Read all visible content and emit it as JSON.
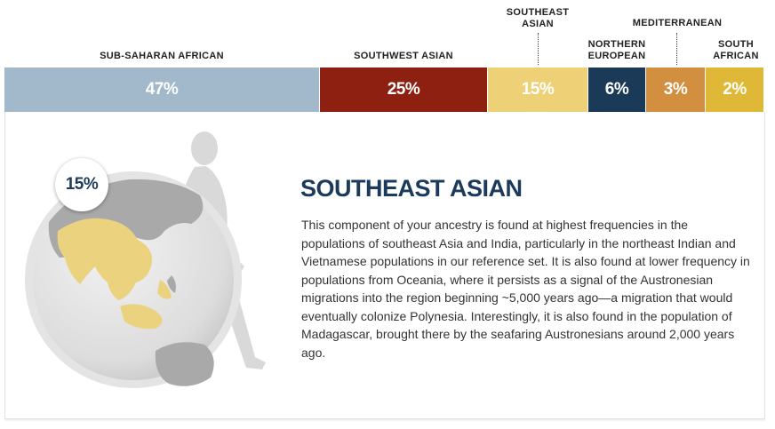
{
  "chart_data": {
    "type": "bar",
    "categories": [
      "SUB-SAHARAN AFRICAN",
      "SOUTHWEST ASIAN",
      "SOUTHEAST ASIAN",
      "NORTHERN EUROPEAN",
      "MEDITERRANEAN",
      "SOUTH AFRICAN"
    ],
    "values": [
      47,
      25,
      15,
      6,
      3,
      2
    ],
    "value_labels": [
      "47%",
      "25%",
      "15%",
      "6%",
      "3%",
      "2%"
    ],
    "colors": [
      "#a2b8cb",
      "#8e2012",
      "#eed177",
      "#1b3a58",
      "#d38f40",
      "#dfb837"
    ],
    "stacked": true,
    "selected": "SOUTHEAST ASIAN"
  },
  "labels": {
    "sub_saharan": "SUB-SAHARAN AFRICAN",
    "southwest_asian": "SOUTHWEST ASIAN",
    "southeast_asian": [
      "SOUTHEAST",
      "ASIAN"
    ],
    "northern_european": [
      "NORTHERN",
      "EUROPEAN"
    ],
    "mediterranean": "MEDITERRANEAN",
    "south_african": [
      "SOUTH",
      "AFRICAN"
    ]
  },
  "detail": {
    "badge": "15%",
    "title": "SOUTHEAST ASIAN",
    "description": "This component of your ancestry is found at highest frequencies in the populations of southeast Asia and India, particularly in the northeast Indian and Vietnamese populations in our reference set. It is also found at lower frequency in populations from Oceania, where it persists as a signal of the Austronesian migrations into the region beginning ~5,000 years ago—a migration that would eventually colonize Polynesia. Interestingly, it is also found in the population of Madagascar, brought there by the seafaring Austronesians around 2,000 years ago.",
    "highlight_color": "#eed177",
    "figure_color": "#d4d4d4"
  }
}
